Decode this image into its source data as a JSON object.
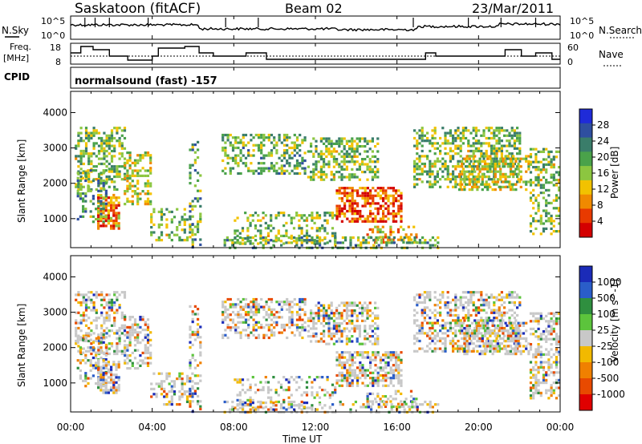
{
  "header": {
    "station": "Saskatoon (fitACF)",
    "beam": "Beam 02",
    "date": "23/Mar/2011"
  },
  "noise_panel": {
    "left_label": "N.Sky",
    "right_label": "N.Search",
    "yticks_left": [
      "10^5",
      "10^0"
    ],
    "yticks_right": [
      "10^5",
      "10^0"
    ]
  },
  "freq_panel": {
    "left_label_1": "Freq.",
    "left_label_2": "[MHz]",
    "yticks_left": [
      "18",
      "8"
    ],
    "right_label": "Nave",
    "yticks_right": [
      "60",
      "0"
    ]
  },
  "cpid_panel": {
    "label": "CPID",
    "text": "normalsound (fast) -157"
  },
  "chart_data": [
    {
      "type": "heatmap",
      "title": "",
      "variable": "Power",
      "units": "dB",
      "xlabel": "",
      "ylabel": "Slant Range [km]",
      "x_range_hours": [
        0,
        24
      ],
      "ylim_km": [
        180,
        4600
      ],
      "yticks": [
        "1000",
        "2000",
        "3000",
        "4000"
      ],
      "colorbar_ticks": [
        "4",
        "8",
        "12",
        "16",
        "20",
        "24",
        "28"
      ],
      "colorbar_title": "Power [dB]",
      "colors": [
        "#1f2bd8",
        "#2f4f9f",
        "#3a7d6a",
        "#4aa24a",
        "#8cc640",
        "#f2c200",
        "#f08a00",
        "#e83a00",
        "#d40000"
      ]
    },
    {
      "type": "heatmap",
      "title": "",
      "variable": "Velocity",
      "units": "m s^-1",
      "xlabel": "Time UT",
      "ylabel": "Slant Range [km]",
      "x_range_hours": [
        0,
        24
      ],
      "ylim_km": [
        180,
        4600
      ],
      "yticks": [
        "1000",
        "2000",
        "3000",
        "4000"
      ],
      "colorbar_ticks": [
        "1000",
        "500",
        "100",
        "25",
        "-25",
        "-100",
        "-500",
        "-1000"
      ],
      "colorbar_title": "Velocity [m s^-1]",
      "colors": [
        "#1b2bb8",
        "#2a5dc9",
        "#2f8f3f",
        "#5cc43c",
        "#c8c8c8",
        "#f2b900",
        "#f08000",
        "#e84a00",
        "#e00000"
      ]
    }
  ],
  "xaxis": {
    "ticks": [
      "00:00",
      "04:00",
      "08:00",
      "12:00",
      "16:00",
      "20:00",
      "00:00"
    ],
    "label": "Time UT"
  }
}
